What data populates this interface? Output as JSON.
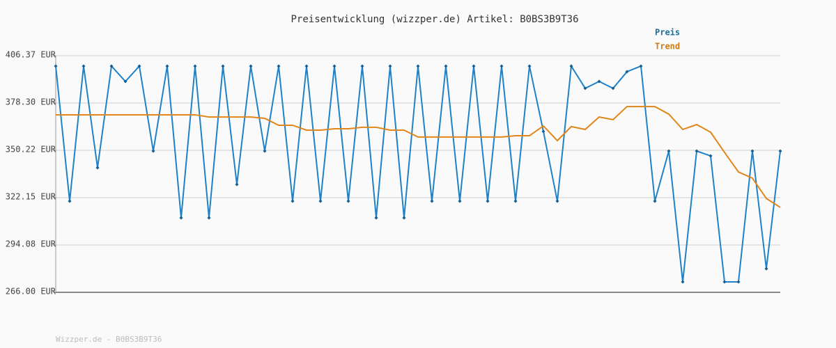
{
  "chart_data": {
    "type": "line",
    "title": "Preisentwicklung (wizzper.de) Artikel: B0BS3B9T36",
    "footer": "Wizzper.de - B0BS3B9T36",
    "ylim": [
      266.0,
      406.37
    ],
    "yticks": [
      {
        "value": 266.0,
        "label": "266.00 EUR"
      },
      {
        "value": 294.08,
        "label": "294.08 EUR"
      },
      {
        "value": 322.15,
        "label": "322.15 EUR"
      },
      {
        "value": 350.22,
        "label": "350.22 EUR"
      },
      {
        "value": 378.3,
        "label": "378.30 EUR"
      },
      {
        "value": 406.37,
        "label": "406.37 EUR"
      }
    ],
    "grid": true,
    "legend": "top-right",
    "series": [
      {
        "name": "Preis",
        "color": "#1f82c8",
        "label_color": "#1a6f99",
        "markers": true,
        "values": [
          400.2,
          320.1,
          400.2,
          339.9,
          400.2,
          391.1,
          400.2,
          349.8,
          400.2,
          310.2,
          400.2,
          310.2,
          400.2,
          330.0,
          400.2,
          349.8,
          400.2,
          320.1,
          400.2,
          320.1,
          400.2,
          320.1,
          400.2,
          310.2,
          400.2,
          310.2,
          400.2,
          320.1,
          400.2,
          320.1,
          400.2,
          320.1,
          400.2,
          320.1,
          400.2,
          361.4,
          320.1,
          400.2,
          387.0,
          391.1,
          387.0,
          396.9,
          400.2,
          320.1,
          349.8,
          272.2,
          349.8,
          346.9,
          272.2,
          272.2,
          349.8,
          280.0,
          349.8
        ]
      },
      {
        "name": "Trend",
        "color": "#e0861a",
        "label_color": "#d27a10",
        "markers": false,
        "values": [
          371.3,
          371.3,
          371.3,
          371.3,
          371.3,
          371.3,
          371.3,
          371.3,
          371.3,
          371.3,
          371.3,
          370.0,
          370.0,
          370.0,
          370.0,
          369.2,
          365.1,
          365.1,
          362.2,
          362.2,
          363.0,
          363.0,
          363.9,
          363.9,
          362.2,
          362.2,
          358.1,
          358.1,
          358.1,
          358.1,
          358.1,
          358.1,
          358.1,
          358.9,
          358.9,
          364.7,
          356.0,
          364.3,
          362.6,
          370.0,
          368.4,
          376.2,
          376.2,
          376.2,
          371.7,
          362.6,
          365.5,
          361.0,
          349.0,
          337.4,
          333.7,
          321.7,
          316.4
        ]
      }
    ]
  }
}
